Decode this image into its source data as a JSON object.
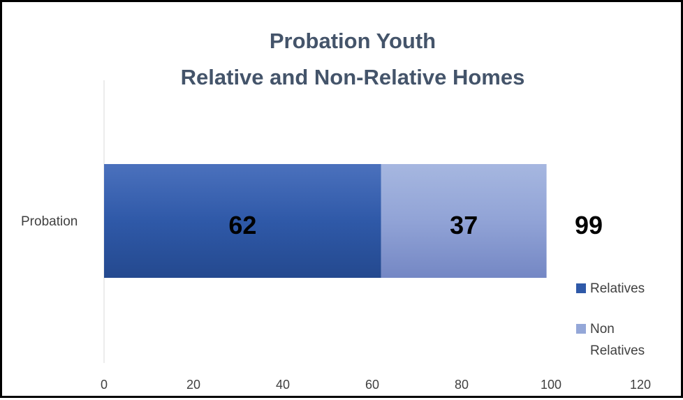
{
  "chart_data": {
    "type": "bar",
    "orientation": "horizontal",
    "stacked": true,
    "title_lines": [
      "Probation Youth",
      "Relative and Non-Relative Homes"
    ],
    "categories": [
      "Probation"
    ],
    "series": [
      {
        "name": "Relatives",
        "values": [
          62
        ],
        "color": "#2f59a8"
      },
      {
        "name": "Non Relatives",
        "values": [
          37
        ],
        "color": "#94a7d8"
      }
    ],
    "total_label": "99",
    "xlim": [
      0,
      120
    ],
    "x_ticks": [
      "0",
      "20",
      "40",
      "60",
      "80",
      "100",
      "120"
    ],
    "grid": false,
    "legend_position": "right",
    "legend_entries": [
      {
        "lines": [
          "Relatives"
        ],
        "color": "#2f59a8"
      },
      {
        "lines": [
          "Non",
          "Relatives"
        ],
        "color": "#94a7d8"
      }
    ]
  }
}
